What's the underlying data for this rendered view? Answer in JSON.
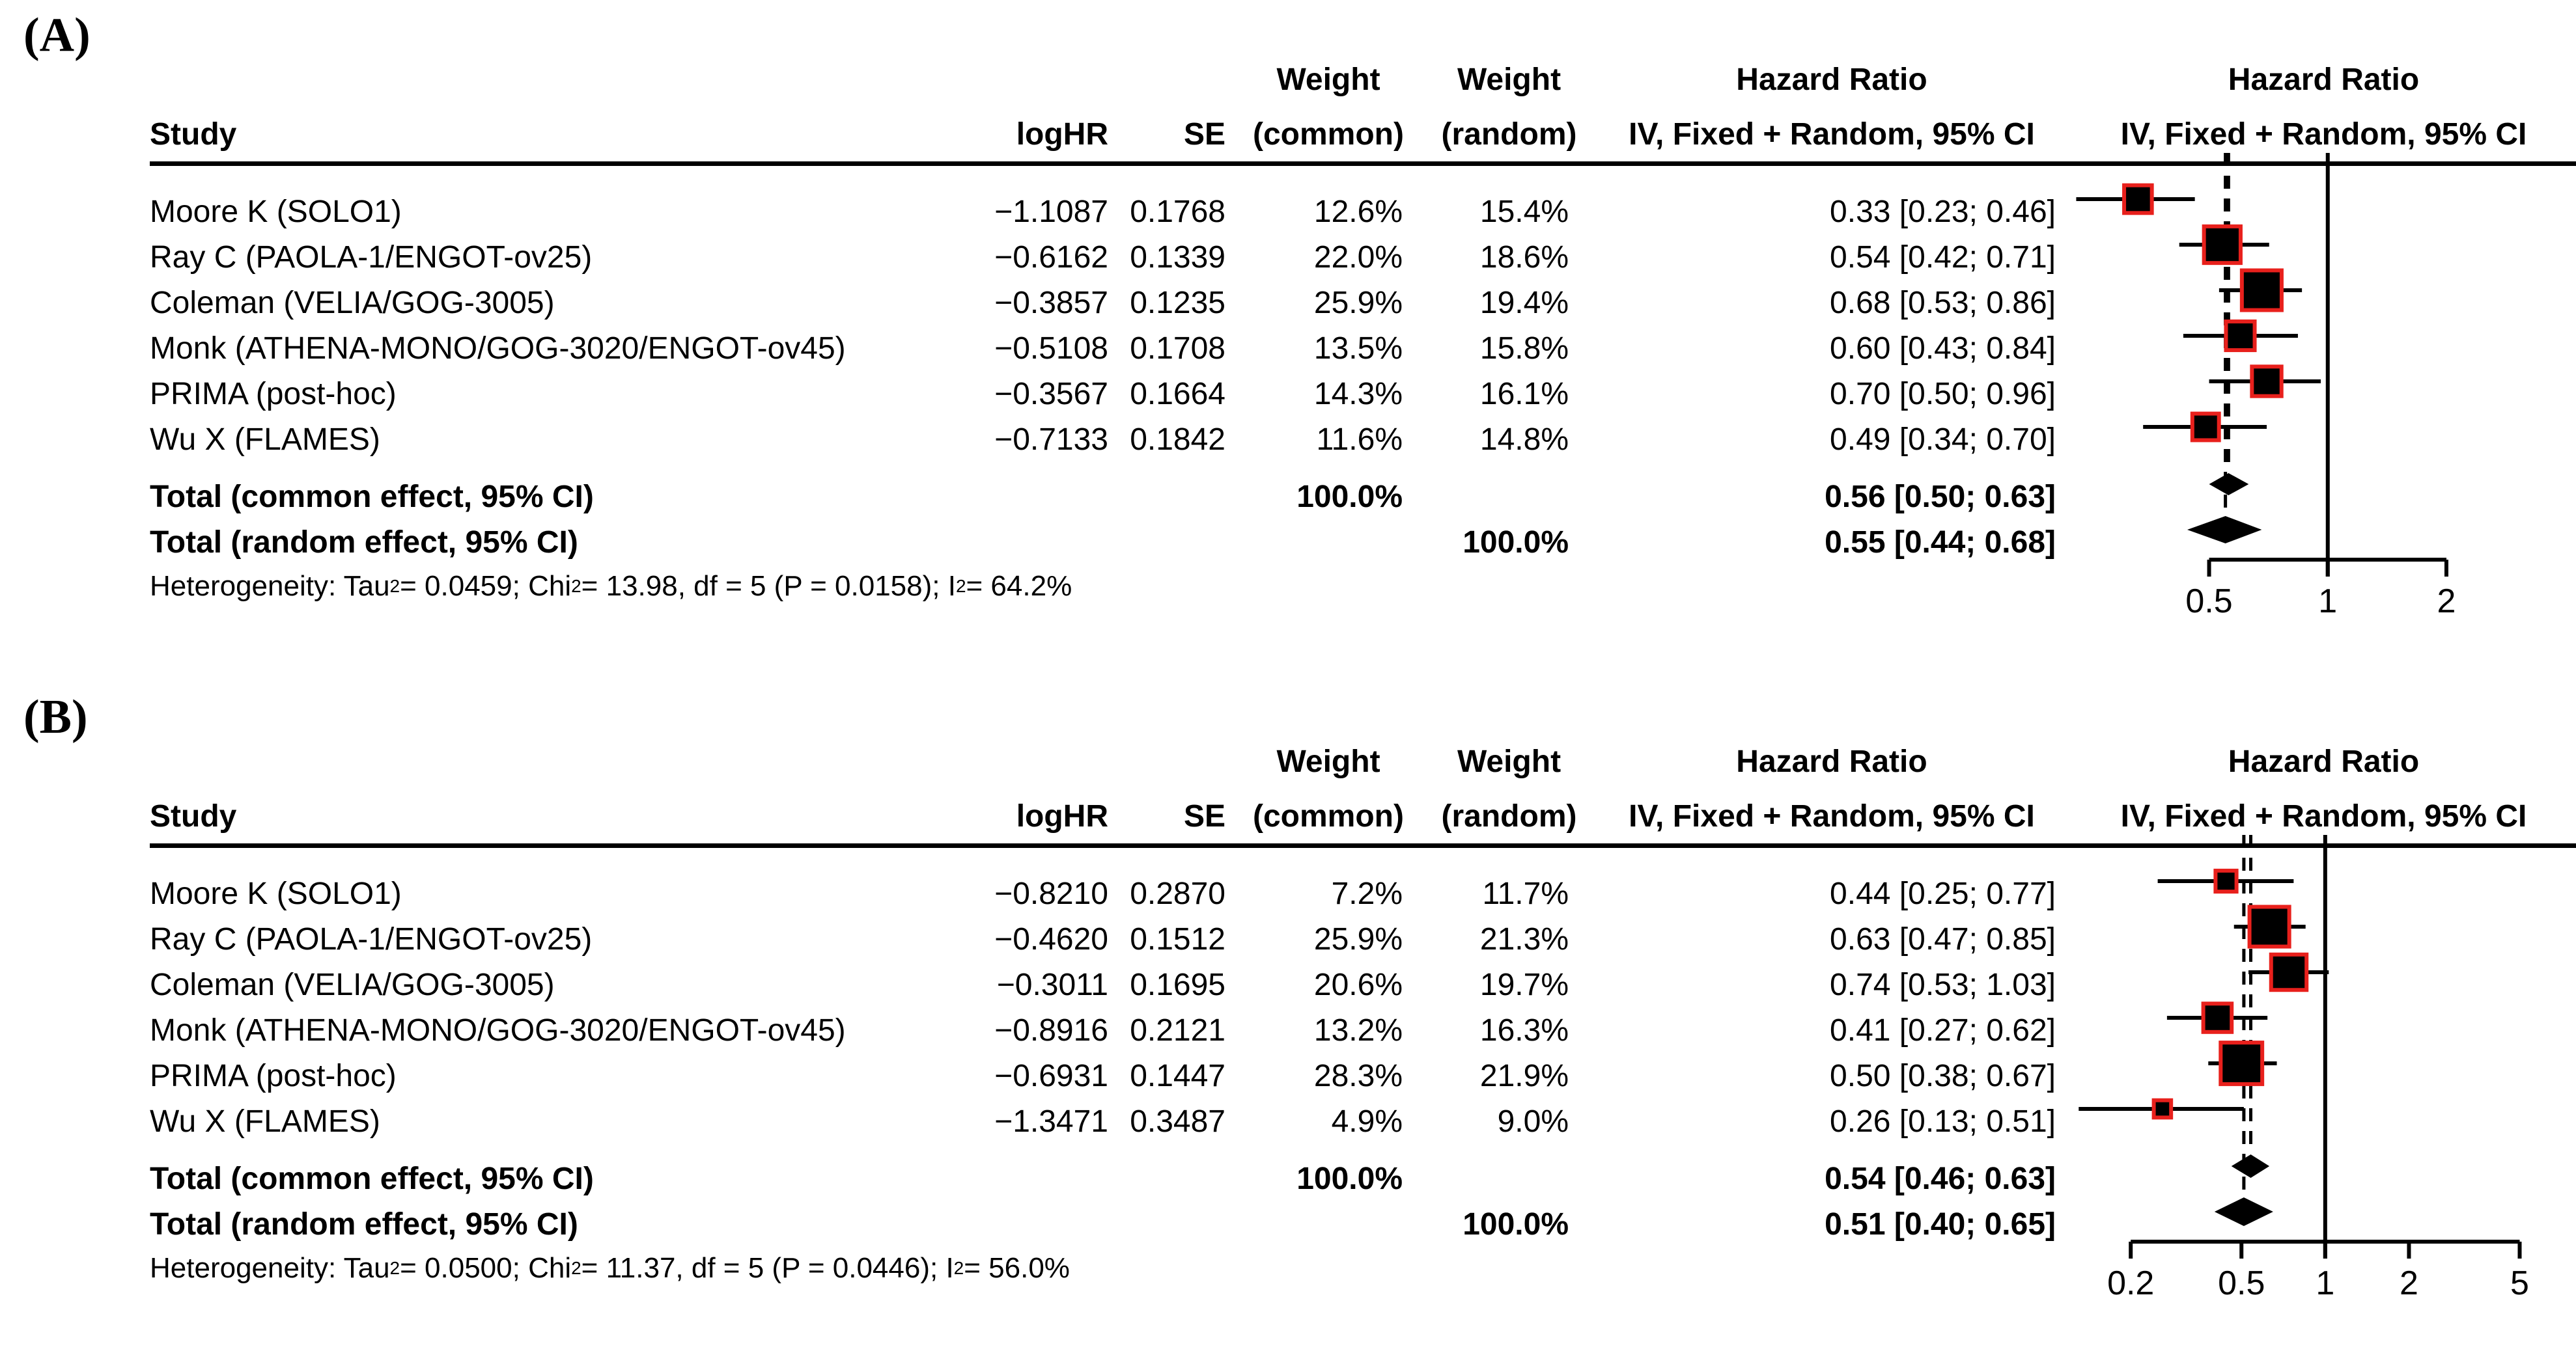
{
  "header": {
    "study": "Study",
    "loghr": "logHR",
    "se": "SE",
    "weight_line1": "Weight",
    "common_line2": "(common)",
    "random_line2": "(random)",
    "hazard_ratio_line1": "Hazard Ratio",
    "ci_line2": "IV, Fixed + Random, 95% CI"
  },
  "colors": {
    "square_fill": "#000000",
    "square_border": "#e8201c",
    "line": "#000000",
    "text": "#000000",
    "background": "#ffffff"
  },
  "chart_data": [
    {
      "type": "forest",
      "panel_label": "(A)",
      "title": "Hazard Ratio",
      "subtitle": "IV, Fixed + Random, 95% CI",
      "x_scale": "log",
      "x_domain": [
        0.227,
        4.2
      ],
      "reference_line": 1,
      "dashed_lines": [
        0.56,
        0.55
      ],
      "axis_ticks": [
        {
          "value": 0.5,
          "label": "0.5"
        },
        {
          "value": 1,
          "label": "1"
        },
        {
          "value": 2,
          "label": "2"
        }
      ],
      "studies": [
        {
          "study": "Moore K (SOLO1)",
          "logHR": "−1.1087",
          "SE": "0.1768",
          "weight_common": "12.6%",
          "weight_random": "15.4%",
          "hr_label": "0.33 [0.23; 0.46]",
          "hr": 0.33,
          "lo": 0.23,
          "hi": 0.46,
          "wc": 12.6
        },
        {
          "study": "Ray C (PAOLA-1/ENGOT-ov25)",
          "logHR": "−0.6162",
          "SE": "0.1339",
          "weight_common": "22.0%",
          "weight_random": "18.6%",
          "hr_label": "0.54 [0.42; 0.71]",
          "hr": 0.54,
          "lo": 0.42,
          "hi": 0.71,
          "wc": 22.0
        },
        {
          "study": "Coleman (VELIA/GOG-3005)",
          "logHR": "−0.3857",
          "SE": "0.1235",
          "weight_common": "25.9%",
          "weight_random": "19.4%",
          "hr_label": "0.68 [0.53; 0.86]",
          "hr": 0.68,
          "lo": 0.53,
          "hi": 0.86,
          "wc": 25.9
        },
        {
          "study": "Monk (ATHENA-MONO/GOG-3020/ENGOT-ov45)",
          "logHR": "−0.5108",
          "SE": "0.1708",
          "weight_common": "13.5%",
          "weight_random": "15.8%",
          "hr_label": "0.60 [0.43; 0.84]",
          "hr": 0.6,
          "lo": 0.43,
          "hi": 0.84,
          "wc": 13.5
        },
        {
          "study": "PRIMA (post-hoc)",
          "logHR": "−0.3567",
          "SE": "0.1664",
          "weight_common": "14.3%",
          "weight_random": "16.1%",
          "hr_label": "0.70 [0.50; 0.96]",
          "hr": 0.7,
          "lo": 0.5,
          "hi": 0.96,
          "wc": 14.3
        },
        {
          "study": "Wu X (FLAMES)",
          "logHR": "−0.7133",
          "SE": "0.1842",
          "weight_common": "11.6%",
          "weight_random": "14.8%",
          "hr_label": "0.49 [0.34; 0.70]",
          "hr": 0.49,
          "lo": 0.34,
          "hi": 0.7,
          "wc": 11.6
        }
      ],
      "totals": [
        {
          "label": "Total (common effect, 95% CI)",
          "weight_common": "100.0%",
          "weight_random": "",
          "hr_label": "0.56 [0.50; 0.63]",
          "hr": 0.56,
          "lo": 0.5,
          "hi": 0.63,
          "diamond_height": 34
        },
        {
          "label": "Total (random effect, 95% CI)",
          "weight_common": "",
          "weight_random": "100.0%",
          "hr_label": "0.55 [0.44; 0.68]",
          "hr": 0.55,
          "lo": 0.44,
          "hi": 0.68,
          "diamond_height": 42
        }
      ],
      "heterogeneity_segments": [
        {
          "text": "Heterogeneity: Tau",
          "sup": false
        },
        {
          "text": "2",
          "sup": true
        },
        {
          "text": " = 0.0459; Chi",
          "sup": false
        },
        {
          "text": "2",
          "sup": true
        },
        {
          "text": " = 13.98, df = 5 (P = 0.0158); I",
          "sup": false
        },
        {
          "text": "2",
          "sup": true
        },
        {
          "text": " = 64.2%",
          "sup": false
        }
      ]
    },
    {
      "type": "forest",
      "panel_label": "(B)",
      "title": "Hazard Ratio",
      "subtitle": "IV, Fixed + Random, 95% CI",
      "x_scale": "log",
      "x_domain": [
        0.125,
        7.8
      ],
      "reference_line": 1,
      "dashed_lines": [
        0.54,
        0.51
      ],
      "axis_ticks": [
        {
          "value": 0.2,
          "label": "0.2"
        },
        {
          "value": 0.5,
          "label": "0.5"
        },
        {
          "value": 1,
          "label": "1"
        },
        {
          "value": 2,
          "label": "2"
        },
        {
          "value": 5,
          "label": "5"
        }
      ],
      "studies": [
        {
          "study": "Moore K (SOLO1)",
          "logHR": "−0.8210",
          "SE": "0.2870",
          "weight_common": "7.2%",
          "weight_random": "11.7%",
          "hr_label": "0.44 [0.25; 0.77]",
          "hr": 0.44,
          "lo": 0.25,
          "hi": 0.77,
          "wc": 7.2
        },
        {
          "study": "Ray C (PAOLA-1/ENGOT-ov25)",
          "logHR": "−0.4620",
          "SE": "0.1512",
          "weight_common": "25.9%",
          "weight_random": "21.3%",
          "hr_label": "0.63 [0.47; 0.85]",
          "hr": 0.63,
          "lo": 0.47,
          "hi": 0.85,
          "wc": 25.9
        },
        {
          "study": "Coleman (VELIA/GOG-3005)",
          "logHR": "−0.3011",
          "SE": "0.1695",
          "weight_common": "20.6%",
          "weight_random": "19.7%",
          "hr_label": "0.74 [0.53; 1.03]",
          "hr": 0.74,
          "lo": 0.53,
          "hi": 1.03,
          "wc": 20.6
        },
        {
          "study": "Monk (ATHENA-MONO/GOG-3020/ENGOT-ov45)",
          "logHR": "−0.8916",
          "SE": "0.2121",
          "weight_common": "13.2%",
          "weight_random": "16.3%",
          "hr_label": "0.41 [0.27; 0.62]",
          "hr": 0.41,
          "lo": 0.27,
          "hi": 0.62,
          "wc": 13.2
        },
        {
          "study": "PRIMA (post-hoc)",
          "logHR": "−0.6931",
          "SE": "0.1447",
          "weight_common": "28.3%",
          "weight_random": "21.9%",
          "hr_label": "0.50 [0.38; 0.67]",
          "hr": 0.5,
          "lo": 0.38,
          "hi": 0.67,
          "wc": 28.3
        },
        {
          "study": "Wu X (FLAMES)",
          "logHR": "−1.3471",
          "SE": "0.3487",
          "weight_common": "4.9%",
          "weight_random": "9.0%",
          "hr_label": "0.26 [0.13; 0.51]",
          "hr": 0.26,
          "lo": 0.13,
          "hi": 0.51,
          "wc": 4.9
        }
      ],
      "totals": [
        {
          "label": "Total (common effect, 95% CI)",
          "weight_common": "100.0%",
          "weight_random": "",
          "hr_label": "0.54 [0.46; 0.63]",
          "hr": 0.54,
          "lo": 0.46,
          "hi": 0.63,
          "diamond_height": 36
        },
        {
          "label": "Total (random effect, 95% CI)",
          "weight_common": "",
          "weight_random": "100.0%",
          "hr_label": "0.51 [0.40; 0.65]",
          "hr": 0.51,
          "lo": 0.4,
          "hi": 0.65,
          "diamond_height": 44
        }
      ],
      "heterogeneity_segments": [
        {
          "text": "Heterogeneity: Tau",
          "sup": false
        },
        {
          "text": "2",
          "sup": true
        },
        {
          "text": " = 0.0500; Chi",
          "sup": false
        },
        {
          "text": "2",
          "sup": true
        },
        {
          "text": " = 11.37, df = 5 (P = 0.0446); I",
          "sup": false
        },
        {
          "text": "2",
          "sup": true
        },
        {
          "text": " = 56.0%",
          "sup": false
        }
      ]
    }
  ]
}
